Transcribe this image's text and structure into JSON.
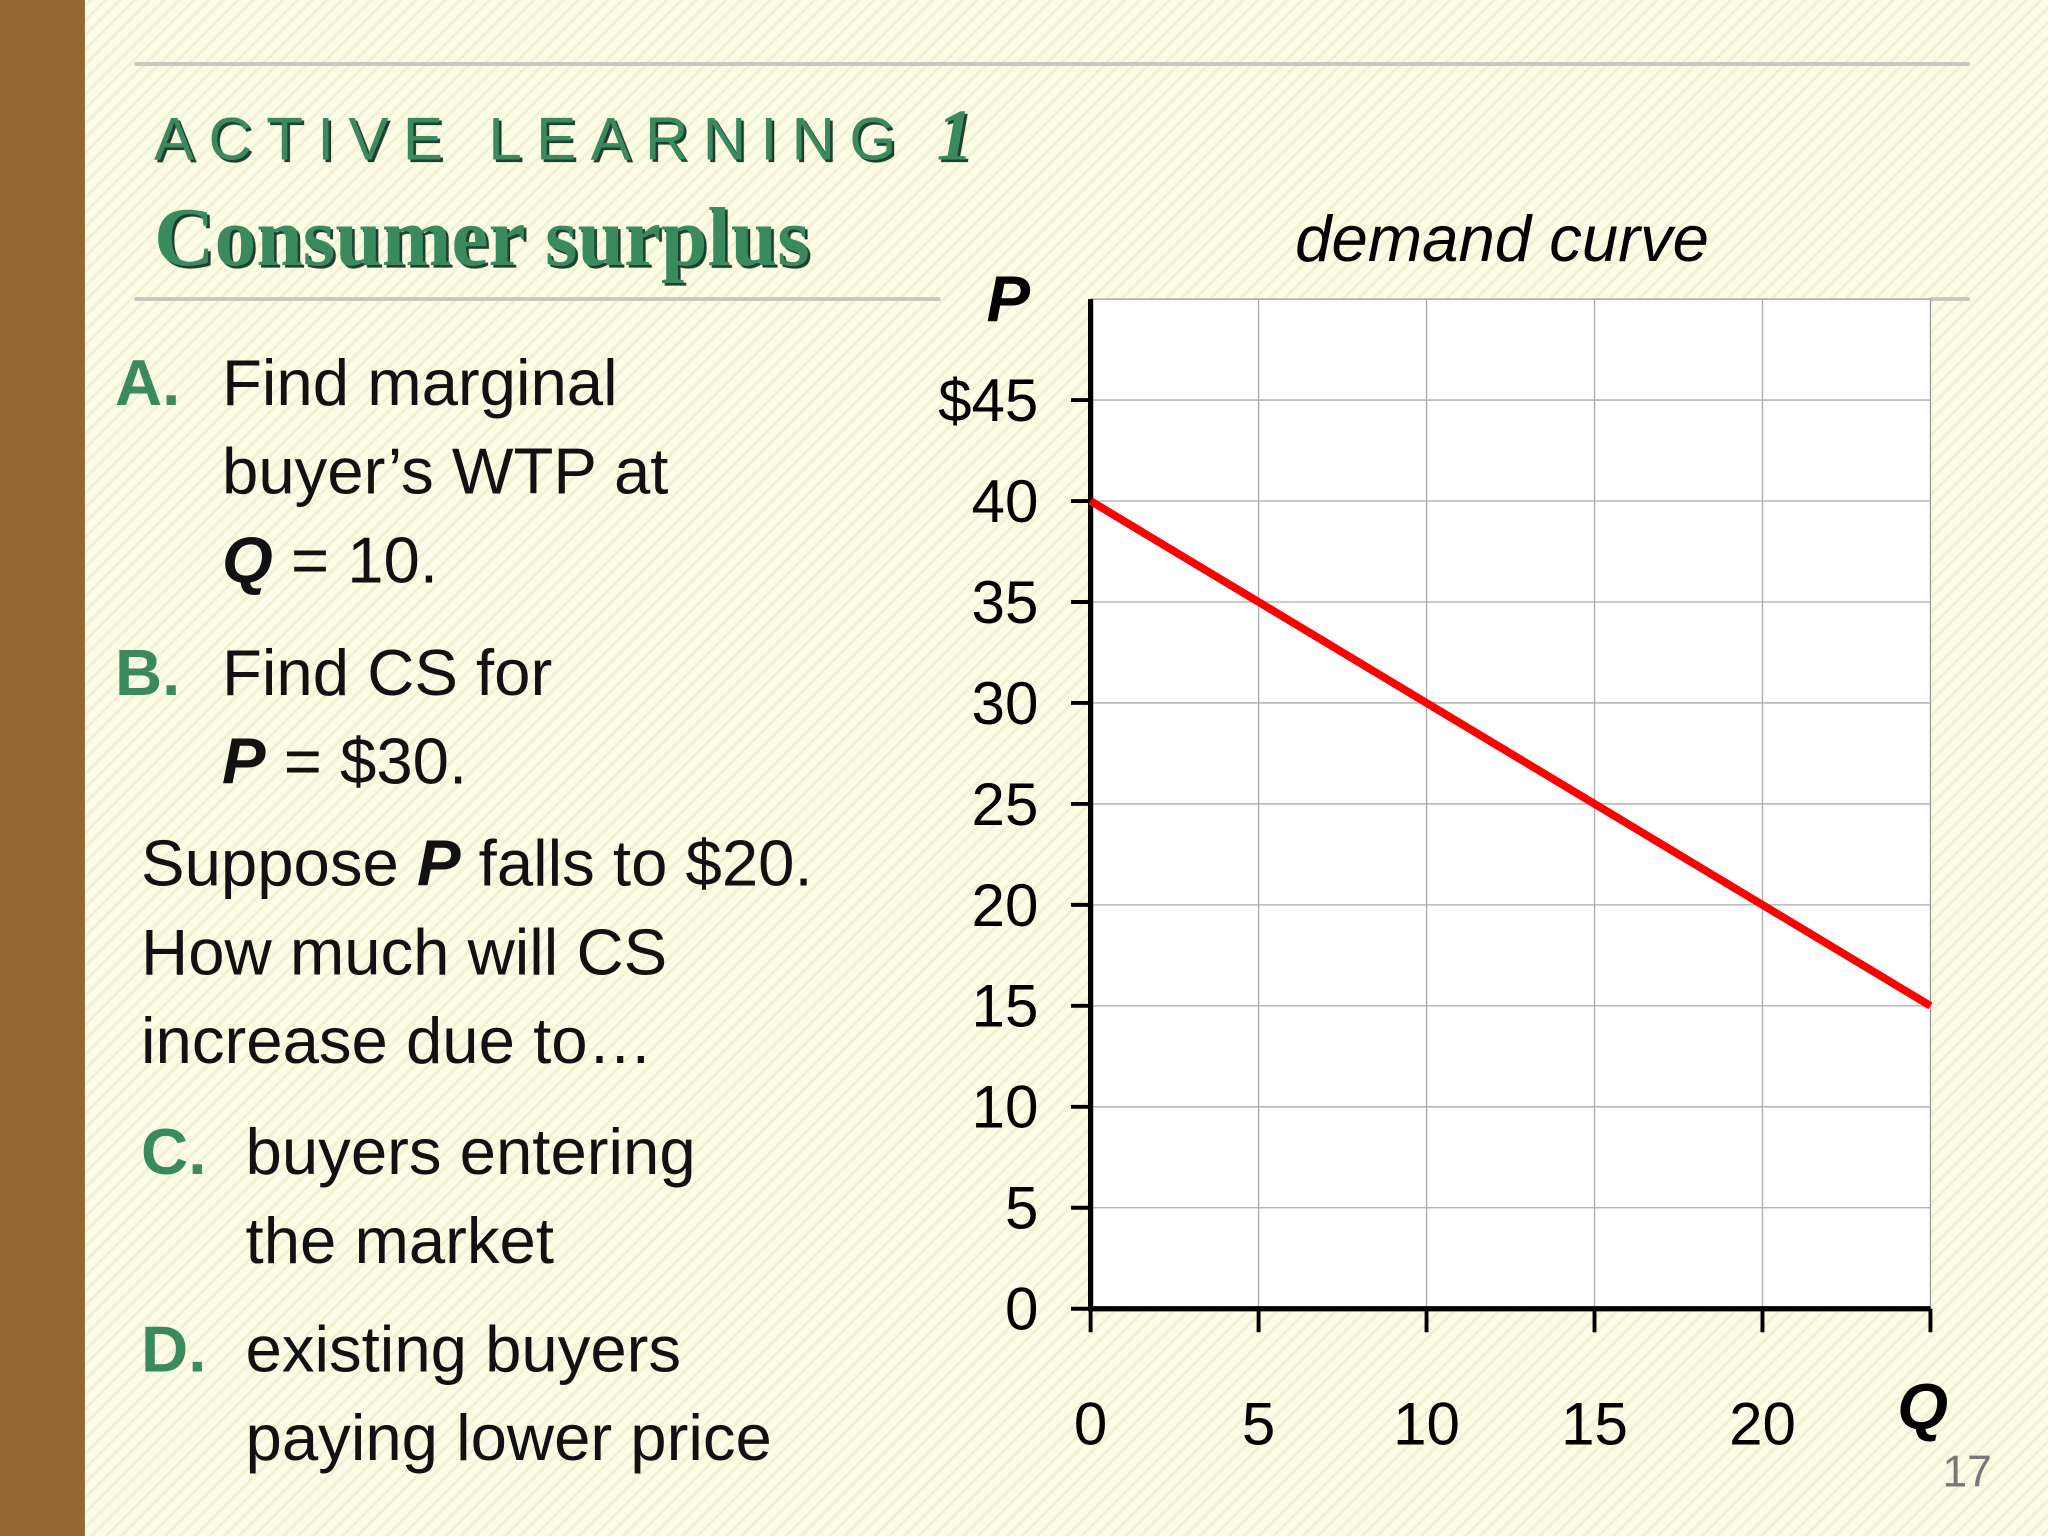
{
  "slide": {
    "kicker": "ACTIVE LEARNING",
    "number": "1",
    "title": "Consumer surplus",
    "page": "17",
    "items": [
      {
        "letter": "A.",
        "lines": [
          "Find marginal",
          "buyer’s WTP at"
        ],
        "var": "Q",
        "tail": " = 10."
      },
      {
        "letter": "B.",
        "lines": [
          "Find CS for"
        ],
        "var": "P",
        "tail": " = $30."
      }
    ],
    "question": {
      "pre": "Suppose ",
      "var": "P",
      "post": " falls to $20.",
      "lines": [
        "How much will CS",
        "increase due to…"
      ]
    },
    "parts": [
      {
        "letter": "C.",
        "lines": [
          "buyers entering",
          "the market"
        ]
      },
      {
        "letter": "D.",
        "lines": [
          "existing buyers",
          "paying lower price"
        ]
      }
    ]
  },
  "chart_data": {
    "type": "line",
    "title": "demand curve",
    "y_label": "P",
    "x_label": "Q",
    "x": [
      0,
      5,
      10,
      15,
      20,
      25
    ],
    "values": [
      40,
      35,
      30,
      25,
      20,
      15
    ],
    "color": "#ff0000",
    "xlim": [
      0,
      25
    ],
    "ylim": [
      0,
      50
    ],
    "xticks": [
      0,
      5,
      10,
      15,
      20
    ],
    "yticks": [
      0,
      5,
      10,
      15,
      20,
      25,
      30,
      35,
      40,
      {
        "value": 45,
        "label": "$45"
      }
    ],
    "grid": true
  }
}
